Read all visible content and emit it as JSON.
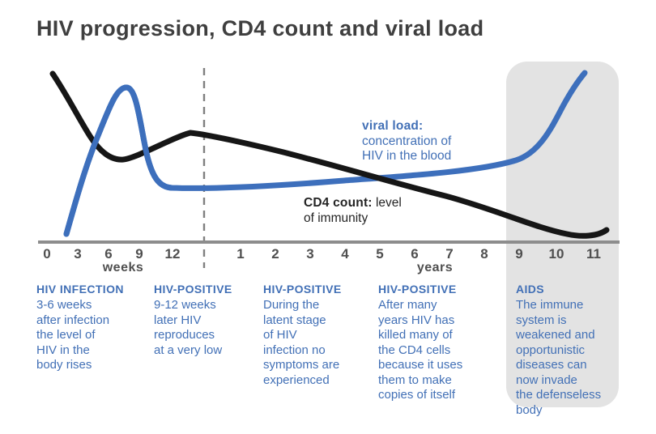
{
  "title": "HIV progression, CD4 count and viral load",
  "colors": {
    "viral_load_blue": "#3d6fbc",
    "cd4_black": "#161616",
    "text_blue": "#4270b6",
    "axis_gray": "#8d8d8d",
    "tick_gray": "#4f4f4f",
    "aids_panel_gray": "#e3e3e3",
    "title_gray": "#3f3f3f"
  },
  "chart_data": {
    "type": "line",
    "title": "HIV progression, CD4 count and viral load",
    "x_axis": {
      "weeks_ticks": [
        "0",
        "3",
        "6",
        "9",
        "12"
      ],
      "weeks_unit": "weeks",
      "years_ticks": [
        "1",
        "2",
        "3",
        "4",
        "5",
        "6",
        "7",
        "8",
        "9",
        "10",
        "11"
      ],
      "years_unit": "years",
      "divider": "dashed vertical line separates weeks scale from years scale"
    },
    "y_axis": {
      "label": "relative level (axis unlabeled)",
      "range": [
        0,
        100
      ]
    },
    "grid": false,
    "legend_position": "inline labels beside curves",
    "series": [
      {
        "name": "viral load",
        "description": "concentration of HIV in the blood",
        "color": "#3d6fbc",
        "points": [
          [
            "week 2",
            4
          ],
          [
            "week 4",
            40
          ],
          [
            "week 6",
            78
          ],
          [
            "week 7",
            90
          ],
          [
            "week 8",
            72
          ],
          [
            "week 10",
            33
          ],
          [
            "week 12",
            31
          ],
          [
            "year 1",
            32
          ],
          [
            "year 2",
            33
          ],
          [
            "year 3",
            35
          ],
          [
            "year 4",
            36
          ],
          [
            "year 5",
            38
          ],
          [
            "year 6",
            41
          ],
          [
            "year 7",
            44
          ],
          [
            "year 8",
            47
          ],
          [
            "year 9",
            57
          ],
          [
            "year 10",
            76
          ],
          [
            "year 11",
            98
          ]
        ]
      },
      {
        "name": "CD4 count",
        "description": "level of immunity",
        "color": "#161616",
        "points": [
          [
            "week 0",
            97
          ],
          [
            "week 2",
            72
          ],
          [
            "week 4",
            55
          ],
          [
            "week 6",
            47
          ],
          [
            "week 8",
            56
          ],
          [
            "week 11",
            63
          ],
          [
            "year 1",
            58
          ],
          [
            "year 2",
            50
          ],
          [
            "year 3",
            45
          ],
          [
            "year 4",
            41
          ],
          [
            "year 5",
            36
          ],
          [
            "year 6",
            30
          ],
          [
            "year 7",
            25
          ],
          [
            "year 8",
            19
          ],
          [
            "year 9",
            11
          ],
          [
            "year 10",
            4
          ],
          [
            "year 11",
            6
          ]
        ]
      }
    ],
    "annotations": {
      "aids_region": "gray rounded highlight from ~year 8.5 to year 11.5 (AIDS phase)"
    }
  },
  "curve_labels": {
    "viral": {
      "title": "viral load:",
      "lines": [
        "concentration of",
        "HIV in the blood"
      ]
    },
    "cd4": {
      "title": "CD4 count:",
      "suffix": "level",
      "line2": "of immunity"
    }
  },
  "stages": [
    {
      "heading": "HIV INFECTION",
      "lines": [
        "3-6 weeks",
        "after infection",
        "the level of",
        "HIV in the",
        "body rises"
      ]
    },
    {
      "heading": "HIV-POSITIVE",
      "lines": [
        "9-12 weeks",
        "later HIV",
        "reproduces",
        "at a very low"
      ]
    },
    {
      "heading": "HIV-POSITIVE",
      "lines": [
        "During the",
        "latent stage",
        "of HIV",
        "infection no",
        "symptoms are",
        "experienced"
      ]
    },
    {
      "heading": "HIV-POSITIVE",
      "lines": [
        "After many",
        "years HIV has",
        "killed many of",
        "the CD4 cells",
        "because it uses",
        "them to make",
        "copies of itself"
      ]
    },
    {
      "heading": "AIDS",
      "lines": [
        "The immune",
        "system is",
        "weakened and",
        "opportunistic",
        "diseases can",
        "now invade",
        "the defenseless",
        "body"
      ]
    }
  ]
}
